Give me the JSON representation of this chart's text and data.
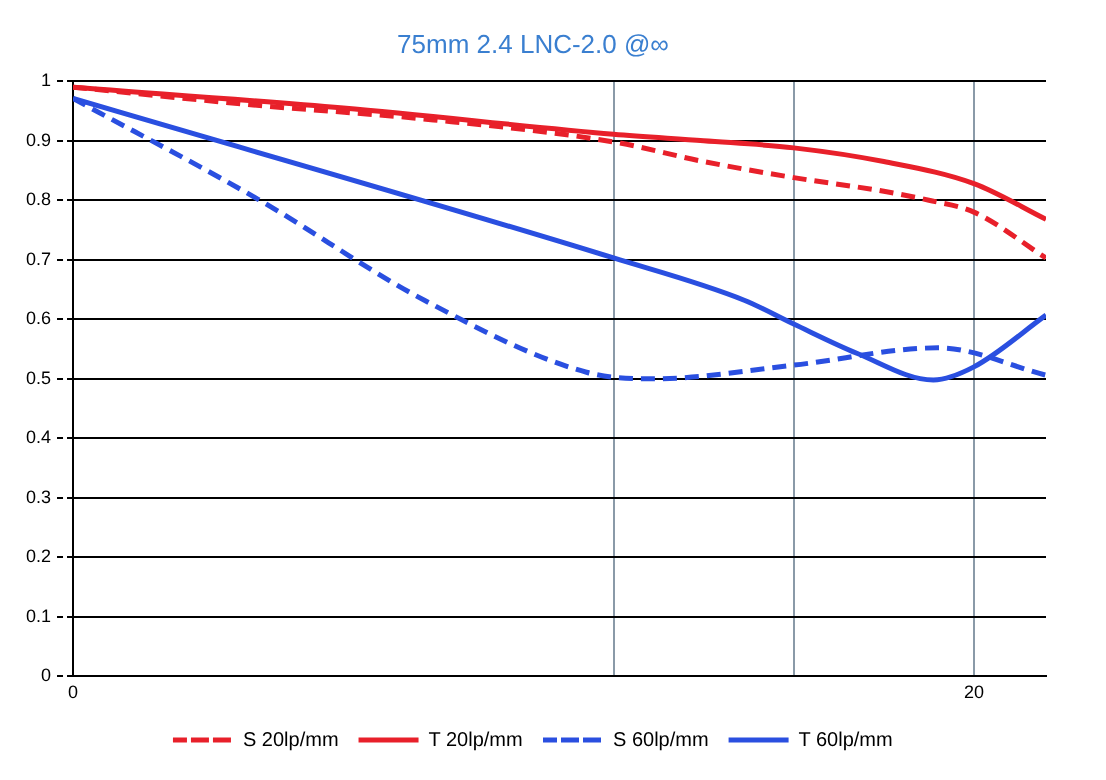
{
  "chart_data": {
    "type": "line",
    "title": "75mm 2.4 LNC-2.0 @∞",
    "xlim": [
      0,
      21.6
    ],
    "xticks": [
      0,
      {
        "value": 12,
        "label": null
      },
      {
        "value": 16,
        "label": null
      },
      20
    ],
    "ylim": [
      0,
      1
    ],
    "yticks": [
      0,
      0.1,
      0.2,
      0.3,
      0.4,
      0.5,
      0.6,
      0.7,
      0.8,
      0.9,
      1
    ],
    "grid": true,
    "legend": "bottom",
    "marker": "none",
    "series": [
      {
        "name": "S 20lp/mm",
        "color": "#e8202a",
        "line_style": "dashed",
        "x": [
          0,
          4,
          8,
          12,
          14,
          16,
          18,
          19,
          20,
          21.6
        ],
        "values": [
          0.99,
          0.96,
          0.935,
          0.898,
          0.865,
          0.838,
          0.815,
          0.8,
          0.78,
          0.703
        ]
      },
      {
        "name": "T 20lp/mm",
        "color": "#e8202a",
        "line_style": "solid",
        "x": [
          0,
          6,
          12,
          14,
          16,
          18,
          20,
          21.6
        ],
        "values": [
          0.99,
          0.955,
          0.911,
          0.9,
          0.888,
          0.865,
          0.828,
          0.768
        ]
      },
      {
        "name": "S 60lp/mm",
        "color": "#2a4fe0",
        "line_style": "dashed",
        "x": [
          0,
          4.1,
          7.8,
          11.4,
          12.9,
          16,
          19.2,
          21.6
        ],
        "values": [
          0.971,
          0.802,
          0.632,
          0.511,
          0.5,
          0.523,
          0.552,
          0.506
        ]
      },
      {
        "name": "T 60lp/mm",
        "color": "#2a4fe0",
        "line_style": "solid",
        "x": [
          0,
          12,
          14.9,
          16,
          17.4,
          19.1,
          20,
          21.6
        ],
        "values": [
          0.971,
          0.703,
          0.632,
          0.592,
          0.543,
          0.498,
          0.52,
          0.607
        ]
      }
    ]
  }
}
